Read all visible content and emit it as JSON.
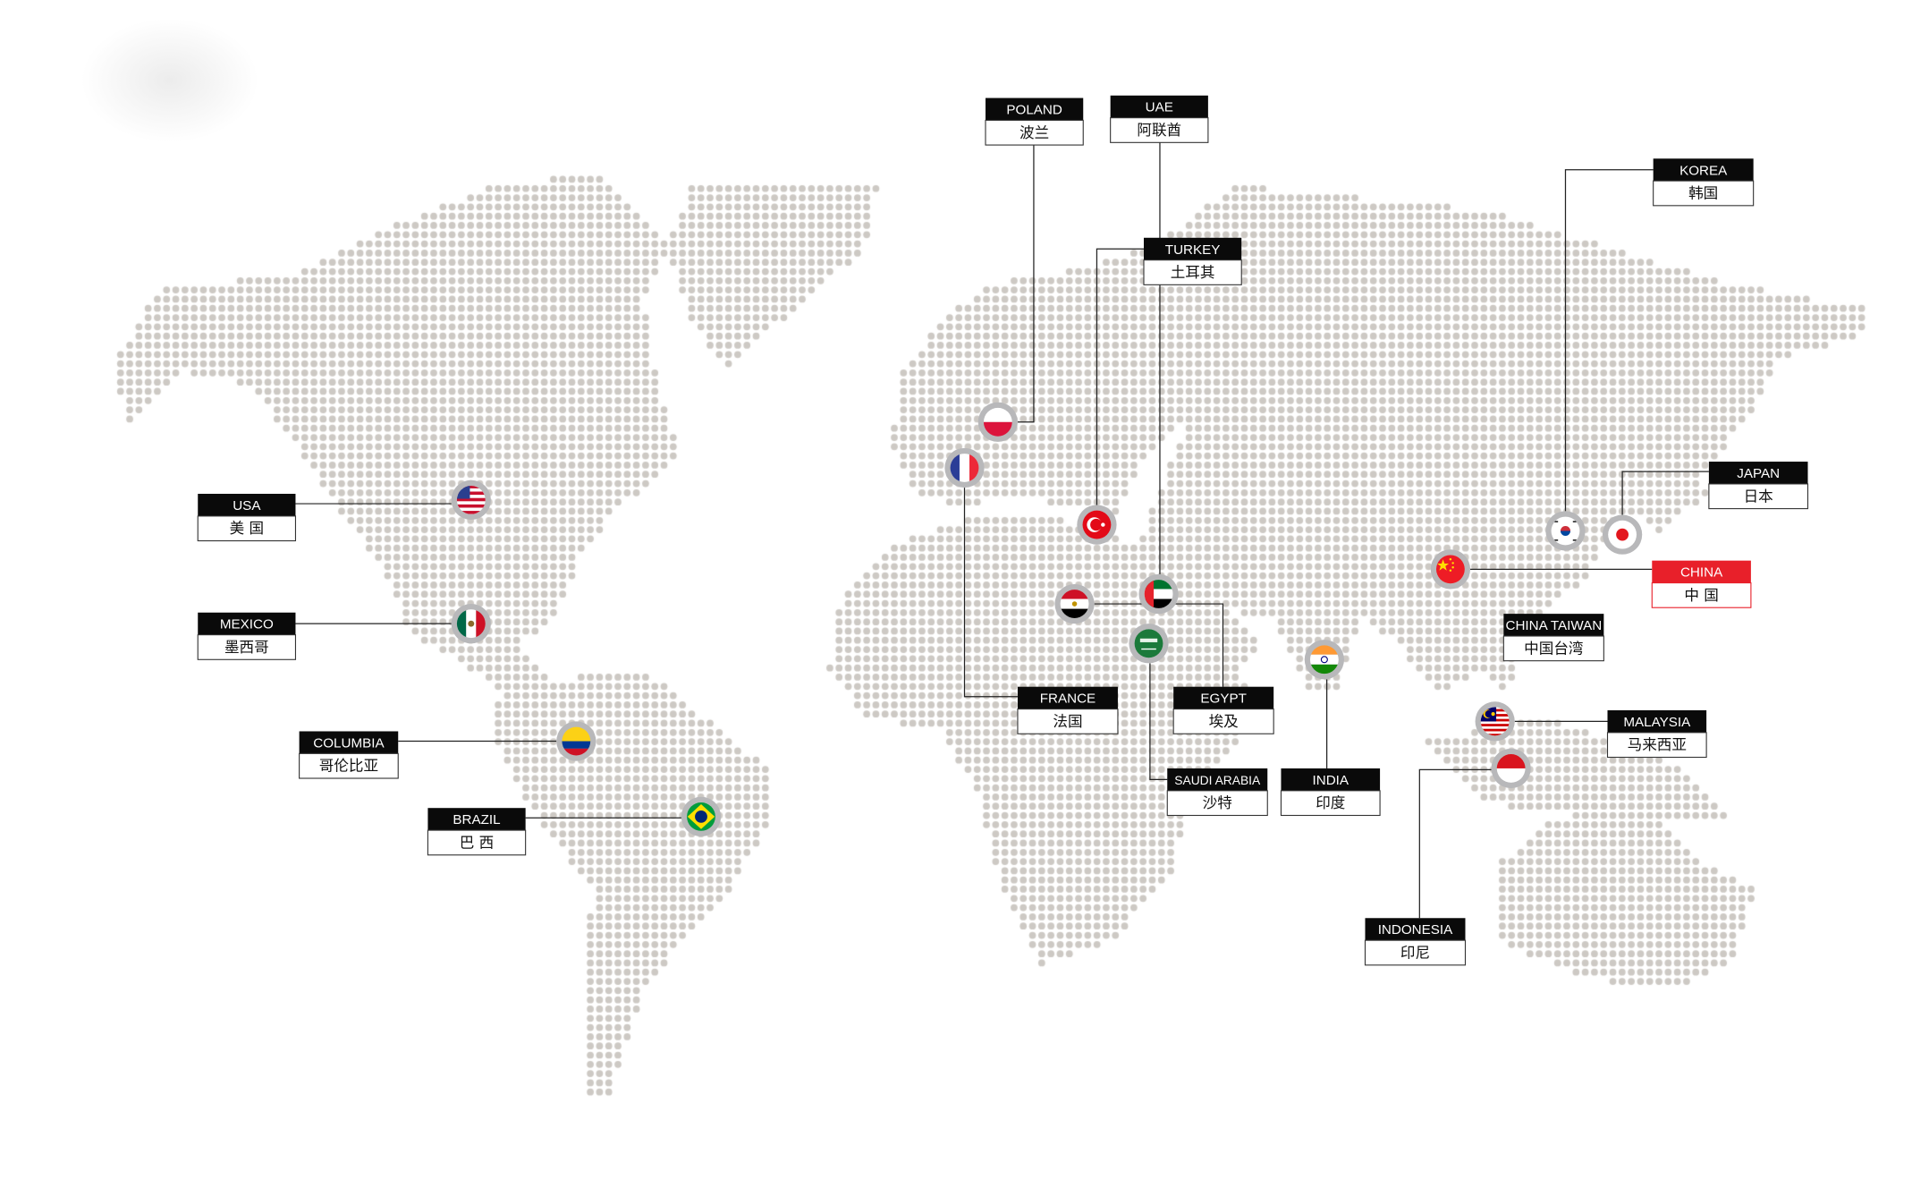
{
  "colors": {
    "dot": "#cdc9c4",
    "label_header": "#0a0a0a",
    "highlight": "#e8202a",
    "flag_ring": "#b8b8ba"
  },
  "labels": {
    "poland": {
      "en": "POLAND",
      "zh": "波兰",
      "flag": "poland-flag-icon"
    },
    "uae": {
      "en": "UAE",
      "zh": "阿联酋",
      "flag": "uae-flag-icon"
    },
    "turkey": {
      "en": "TURKEY",
      "zh": "土耳其",
      "flag": "turkey-flag-icon"
    },
    "korea": {
      "en": "KOREA",
      "zh": "韩国",
      "flag": "korea-flag-icon"
    },
    "japan": {
      "en": "JAPAN",
      "zh": "日本",
      "flag": "japan-flag-icon"
    },
    "china": {
      "en": "CHINA",
      "zh": "中 国",
      "flag": "china-flag-icon",
      "highlighted": true
    },
    "china_taiwan": {
      "en": "CHINA TAIWAN",
      "zh": "中国台湾"
    },
    "malaysia": {
      "en": "MALAYSIA",
      "zh": "马来西亚",
      "flag": "malaysia-flag-icon"
    },
    "indonesia": {
      "en": "INDONESIA",
      "zh": "印尼",
      "flag": "indonesia-flag-icon"
    },
    "india": {
      "en": "INDIA",
      "zh": "印度",
      "flag": "india-flag-icon"
    },
    "saudi_arabia": {
      "en": "SAUDI ARABIA",
      "zh": "沙特",
      "flag": "saudi-arabia-flag-icon"
    },
    "egypt": {
      "en": "EGYPT",
      "zh": "埃及",
      "flag": "egypt-flag-icon"
    },
    "france": {
      "en": "FRANCE",
      "zh": "法国",
      "flag": "france-flag-icon"
    },
    "usa": {
      "en": "USA",
      "zh": "美 国",
      "flag": "usa-flag-icon"
    },
    "mexico": {
      "en": "MEXICO",
      "zh": "墨西哥",
      "flag": "mexico-flag-icon"
    },
    "columbia": {
      "en": "COLUMBIA",
      "zh": "哥伦比亚",
      "flag": "colombia-flag-icon"
    },
    "brazil": {
      "en": "BRAZIL",
      "zh": "巴 西",
      "flag": "brazil-flag-icon"
    }
  }
}
